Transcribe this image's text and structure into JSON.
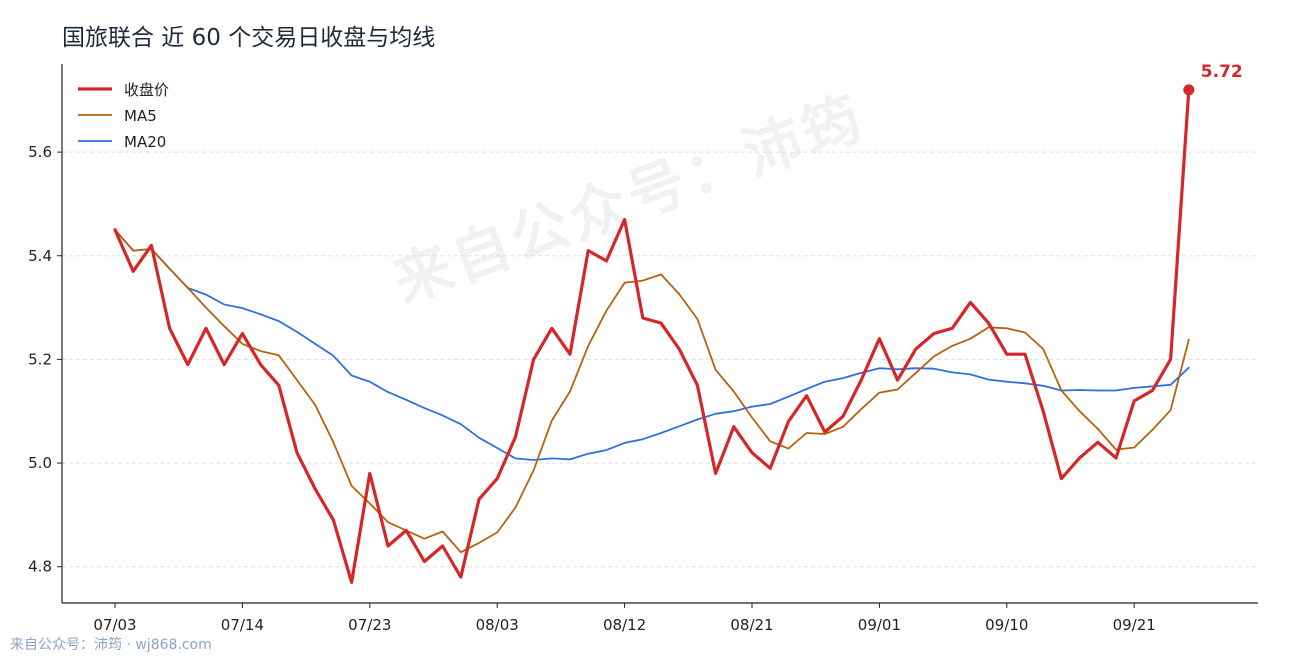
{
  "colors": {
    "close": "#d62728",
    "ma5": "#b8620e",
    "ma20": "#2f6fdf",
    "grid": "#dddddd",
    "axis": "#222222"
  },
  "watermark": {
    "center": "来自公众号：沛筠",
    "footer": "来自公众号：沛筠 · wj868.com"
  },
  "chart_data": {
    "type": "line",
    "title": "国旅联合 近 60 个交易日收盘与均线",
    "xlabel": "",
    "ylabel": "",
    "ylim": [
      4.73,
      5.77
    ],
    "yticks": [
      4.8,
      5.0,
      5.2,
      5.4,
      5.6
    ],
    "ytick_labels": [
      "4.8",
      "5.0",
      "5.2",
      "5.4",
      "5.6"
    ],
    "x_ticks": [
      {
        "index": 0,
        "label": "07/03"
      },
      {
        "index": 7,
        "label": "07/14"
      },
      {
        "index": 14,
        "label": "07/23"
      },
      {
        "index": 21,
        "label": "08/03"
      },
      {
        "index": 28,
        "label": "08/12"
      },
      {
        "index": 35,
        "label": "08/21"
      },
      {
        "index": 42,
        "label": "09/01"
      },
      {
        "index": 49,
        "label": "09/10"
      },
      {
        "index": 56,
        "label": "09/21"
      }
    ],
    "grid": "horizontal dashed",
    "legend_position": "top-left",
    "series": [
      {
        "name": "收盘价",
        "key": "close",
        "values": [
          5.45,
          5.37,
          5.42,
          5.26,
          5.19,
          5.26,
          5.19,
          5.25,
          5.19,
          5.15,
          5.02,
          4.95,
          4.89,
          4.77,
          4.98,
          4.84,
          4.87,
          4.81,
          4.84,
          4.78,
          4.93,
          4.97,
          5.05,
          5.2,
          5.26,
          5.21,
          5.41,
          5.39,
          5.47,
          5.28,
          5.27,
          5.22,
          5.15,
          4.98,
          5.07,
          5.02,
          4.99,
          5.08,
          5.13,
          5.06,
          5.09,
          5.16,
          5.24,
          5.16,
          5.22,
          5.25,
          5.26,
          5.31,
          5.27,
          5.21,
          5.21,
          5.1,
          4.97,
          5.01,
          5.04,
          5.01,
          5.12,
          5.14,
          5.2,
          5.72
        ]
      },
      {
        "name": "MA5",
        "key": "ma5",
        "values": [
          5.45,
          5.41,
          5.413,
          5.375,
          5.338,
          5.3,
          5.264,
          5.23,
          5.216,
          5.208,
          5.16,
          5.112,
          5.04,
          4.956,
          4.922,
          4.886,
          4.87,
          4.854,
          4.868,
          4.828,
          4.846,
          4.866,
          4.914,
          4.986,
          5.082,
          5.138,
          5.226,
          5.294,
          5.348,
          5.352,
          5.364,
          5.326,
          5.278,
          5.18,
          5.138,
          5.088,
          5.042,
          5.028,
          5.058,
          5.056,
          5.07,
          5.104,
          5.136,
          5.142,
          5.174,
          5.206,
          5.226,
          5.24,
          5.262,
          5.26,
          5.252,
          5.22,
          5.14,
          5.1,
          5.066,
          5.026,
          5.03,
          5.064,
          5.102,
          5.238
        ]
      },
      {
        "name": "MA20",
        "key": "ma20",
        "values": [
          5.45,
          5.41,
          5.413,
          5.375,
          5.338,
          5.325,
          5.306,
          5.299,
          5.287,
          5.274,
          5.253,
          5.23,
          5.207,
          5.169,
          5.157,
          5.137,
          5.122,
          5.106,
          5.092,
          5.075,
          5.049,
          5.029,
          5.009,
          5.006,
          5.009,
          5.007,
          5.018,
          5.025,
          5.039,
          5.046,
          5.058,
          5.071,
          5.084,
          5.095,
          5.1,
          5.109,
          5.114,
          5.128,
          5.143,
          5.157,
          5.164,
          5.174,
          5.183,
          5.181,
          5.183,
          5.182,
          5.175,
          5.171,
          5.161,
          5.157,
          5.154,
          5.149,
          5.14,
          5.141,
          5.14,
          5.14,
          5.145,
          5.148,
          5.151,
          5.184
        ]
      }
    ],
    "annotation": {
      "series": "close",
      "index": 59,
      "text": "5.72"
    }
  }
}
